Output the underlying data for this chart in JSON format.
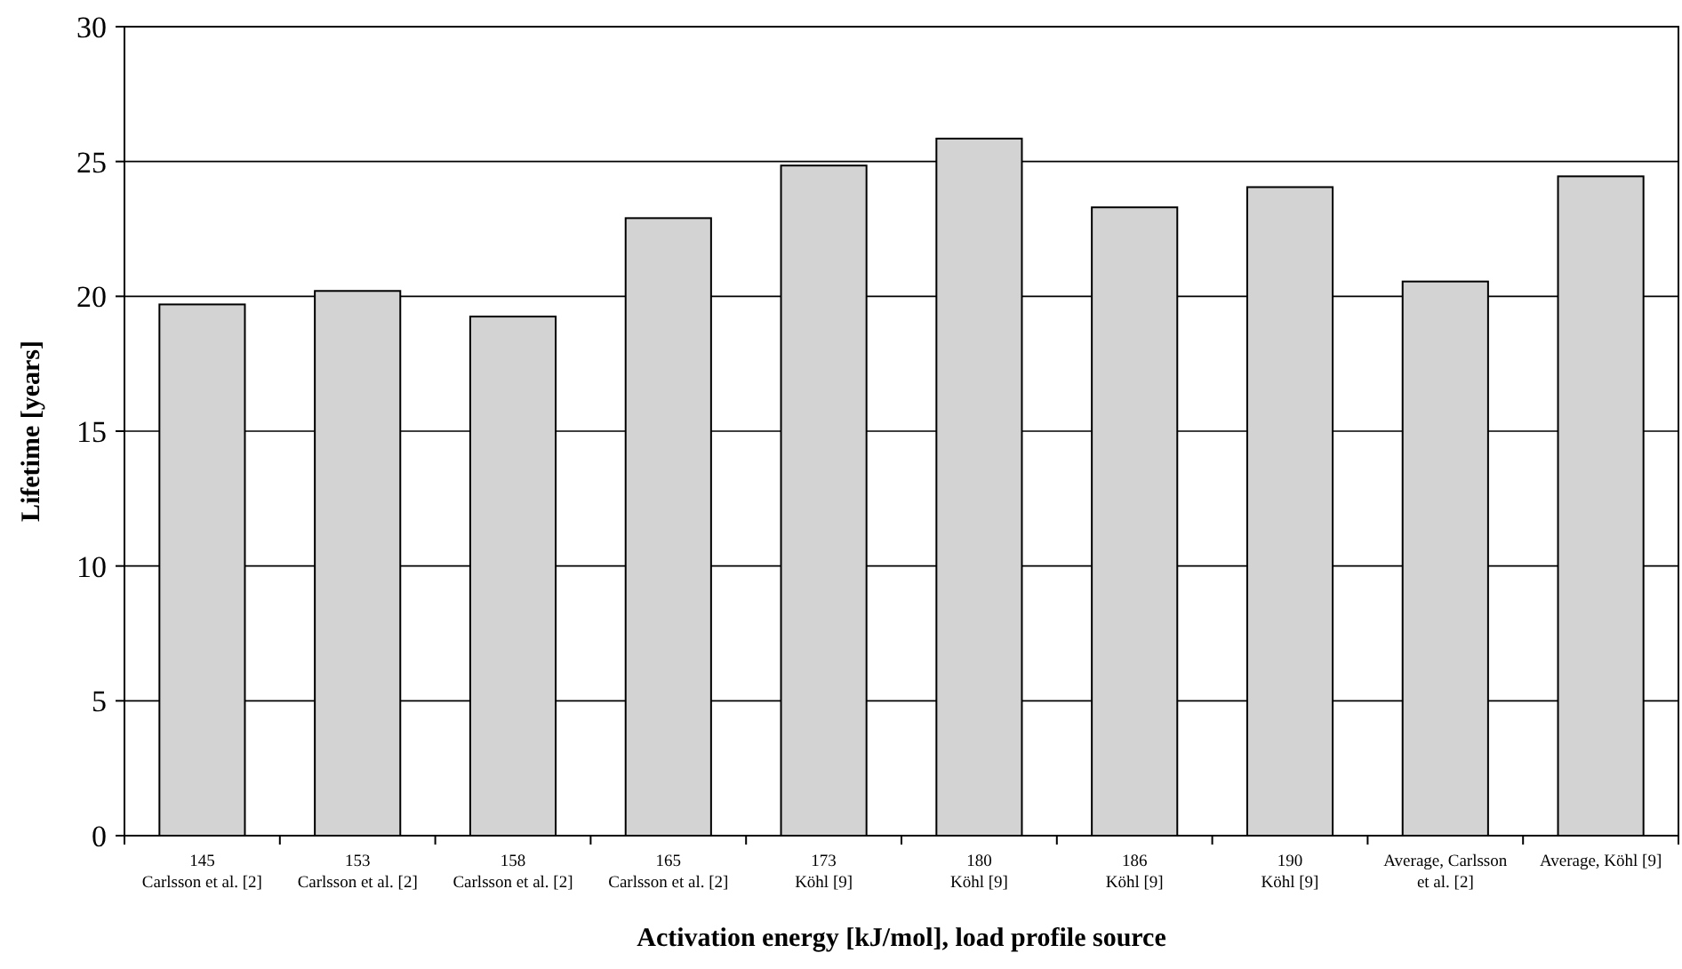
{
  "chart_data": {
    "type": "bar",
    "xlabel": "Activation energy [kJ/mol], load profile source",
    "ylabel": "Lifetime [years]",
    "categories": [
      "145\nCarlsson et al. [2]",
      "153\nCarlsson et al. [2]",
      "158\nCarlsson et al. [2]",
      "165\nCarlsson et al. [2]",
      "173\nKöhl [9]",
      "180\nKöhl [9]",
      "186\nKöhl [9]",
      "190\nKöhl [9]",
      "Average, Carlsson\net al. [2]",
      "Average, Köhl [9]"
    ],
    "values": [
      19.7,
      20.2,
      19.25,
      22.9,
      24.85,
      25.85,
      23.3,
      24.05,
      20.55,
      24.45
    ],
    "color": "#d3d3d3",
    "ylim": [
      0,
      30
    ],
    "yticks": [
      0,
      5,
      10,
      15,
      20,
      25,
      30
    ],
    "grid": "y"
  }
}
